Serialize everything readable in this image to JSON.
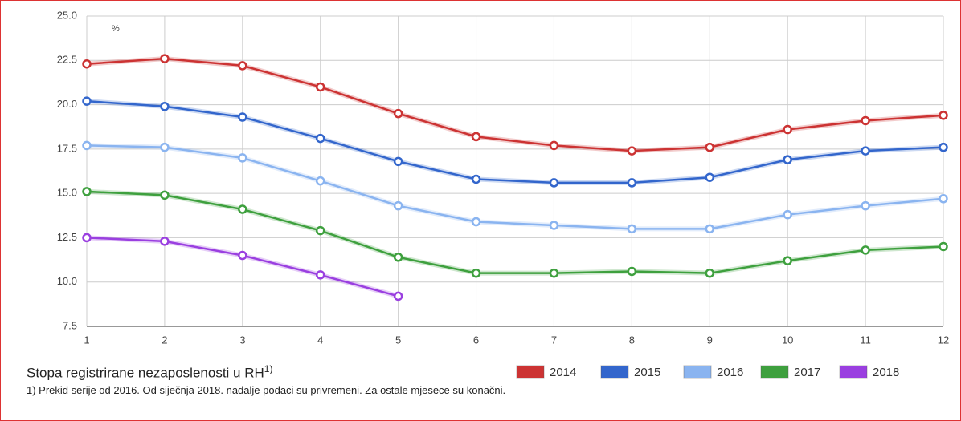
{
  "chart_data": {
    "type": "line",
    "title": "Stopa registrirane nezaposlenosti u RH",
    "title_superscript": "1)",
    "footnote": "1) Prekid serije od 2016. Od siječnja 2018. nadalje podaci su privremeni. Za ostale mjesece su konačni.",
    "y_unit": "%",
    "x": [
      1,
      2,
      3,
      4,
      5,
      6,
      7,
      8,
      9,
      10,
      11,
      12
    ],
    "xlim": [
      1,
      12
    ],
    "xticks": [
      1,
      2,
      3,
      4,
      5,
      6,
      7,
      8,
      9,
      10,
      11,
      12
    ],
    "ylim": [
      7.5,
      25
    ],
    "yticks": [
      {
        "value": 7.5,
        "label": "7.5"
      },
      {
        "value": 10,
        "label": "10.0"
      },
      {
        "value": 12.5,
        "label": "12.5"
      },
      {
        "value": 15,
        "label": "15.0"
      },
      {
        "value": 17.5,
        "label": "17.5"
      },
      {
        "value": 20,
        "label": "20.0"
      },
      {
        "value": 22.5,
        "label": "22.5"
      },
      {
        "value": 25,
        "label": "25.0"
      }
    ],
    "grid": true,
    "series": [
      {
        "name": "2014",
        "color": "#cc3333",
        "values": [
          22.3,
          22.6,
          22.2,
          21.0,
          19.5,
          18.2,
          17.7,
          17.4,
          17.6,
          18.6,
          19.1,
          19.4
        ]
      },
      {
        "name": "2015",
        "color": "#3366cc",
        "values": [
          20.2,
          19.9,
          19.3,
          18.1,
          16.8,
          15.8,
          15.6,
          15.6,
          15.9,
          16.9,
          17.4,
          17.6
        ]
      },
      {
        "name": "2016",
        "color": "#8ab4f0",
        "values": [
          17.7,
          17.6,
          17.0,
          15.7,
          14.3,
          13.4,
          13.2,
          13.0,
          13.0,
          13.8,
          14.3,
          14.7
        ]
      },
      {
        "name": "2017",
        "color": "#3ea03e",
        "values": [
          15.1,
          14.9,
          14.1,
          12.9,
          11.4,
          10.5,
          10.5,
          10.6,
          10.5,
          11.2,
          11.8,
          12.0
        ]
      },
      {
        "name": "2018",
        "color": "#9a3fe0",
        "values": [
          12.5,
          12.3,
          11.5,
          10.4,
          9.2,
          null,
          null,
          null,
          null,
          null,
          null,
          null
        ]
      }
    ]
  }
}
